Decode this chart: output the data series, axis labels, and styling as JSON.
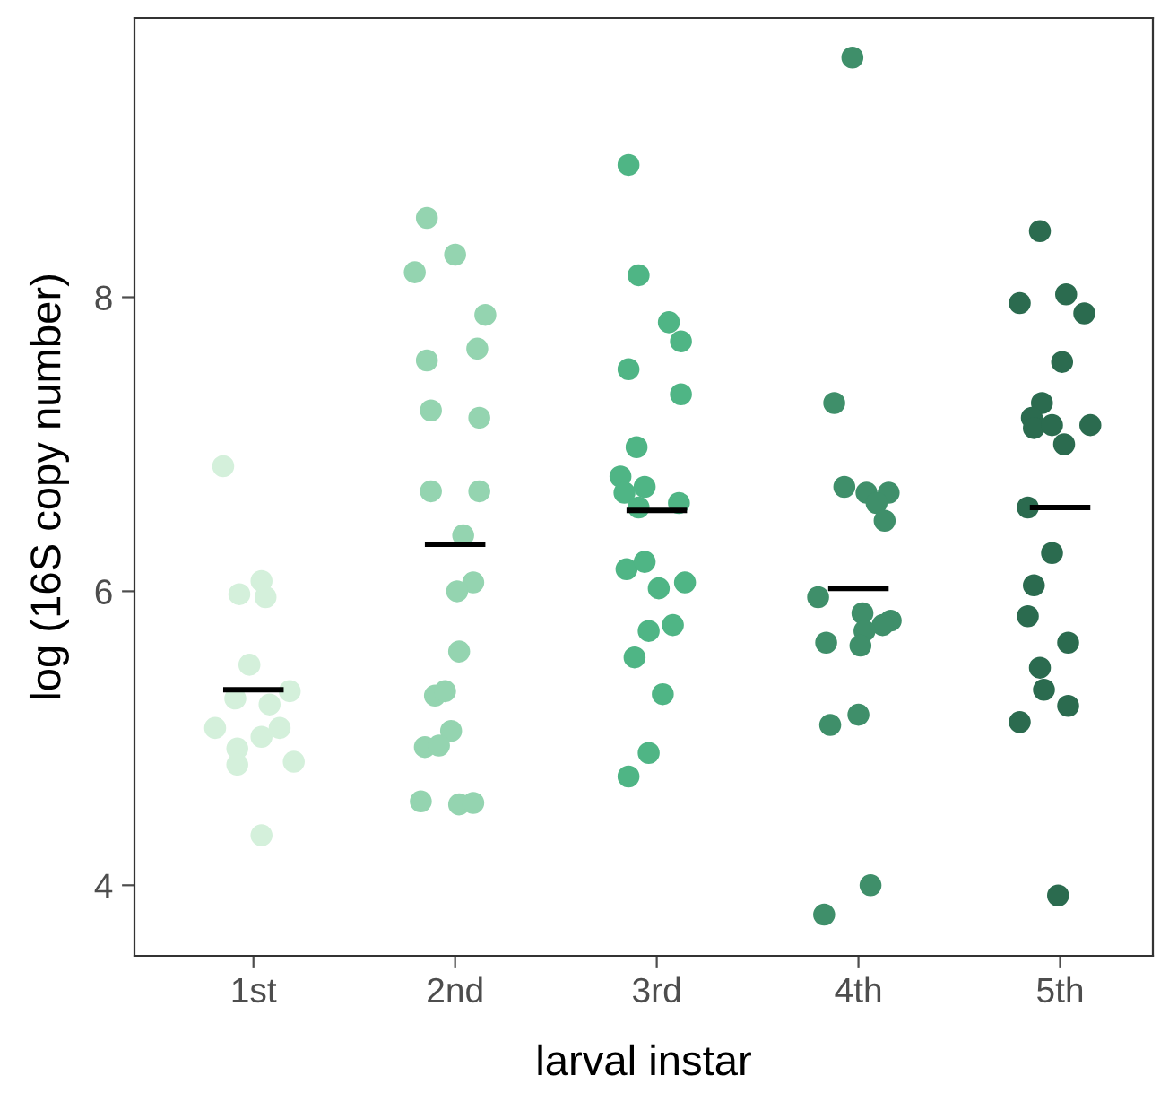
{
  "chart_data": {
    "type": "scatter",
    "xlabel": "larval instar",
    "ylabel": "log (16S copy number)",
    "xlim": [
      0.41,
      5.46
    ],
    "ylim": [
      3.52,
      9.9
    ],
    "xticks": [
      {
        "value": 1,
        "label": "1st"
      },
      {
        "value": 2,
        "label": "2nd"
      },
      {
        "value": 3,
        "label": "3rd"
      },
      {
        "value": 4,
        "label": "4th"
      },
      {
        "value": 5,
        "label": "5th"
      }
    ],
    "yticks": [
      4,
      6,
      8
    ],
    "grid": false,
    "marker": "circle",
    "series": [
      {
        "color": "#d4f0db",
        "x": [
          0.85,
          0.93,
          1.04,
          1.06,
          0.98,
          0.91,
          1.08,
          1.18,
          0.81,
          1.04,
          1.13,
          0.92,
          0.92,
          1.2,
          1.04
        ],
        "values": [
          6.85,
          5.98,
          6.07,
          5.96,
          5.5,
          5.27,
          5.23,
          5.32,
          5.07,
          5.01,
          5.07,
          4.93,
          4.82,
          4.84,
          4.34
        ]
      },
      {
        "color": "#94d4b0",
        "x": [
          1.86,
          2.0,
          1.8,
          2.15,
          2.11,
          1.86,
          1.88,
          2.12,
          1.88,
          2.12,
          2.04,
          2.09,
          2.01,
          2.02,
          1.9,
          1.95,
          1.98,
          1.85,
          1.92,
          1.83,
          2.02,
          2.09
        ],
        "values": [
          8.54,
          8.29,
          8.17,
          7.88,
          7.65,
          7.57,
          7.23,
          7.18,
          6.68,
          6.68,
          6.38,
          6.06,
          6.0,
          5.59,
          5.29,
          5.32,
          5.05,
          4.94,
          4.95,
          4.57,
          4.55,
          4.56
        ]
      },
      {
        "color": "#4fb585",
        "x": [
          2.86,
          2.91,
          3.06,
          3.12,
          2.86,
          3.12,
          2.9,
          2.82,
          2.84,
          2.94,
          2.91,
          3.11,
          2.85,
          2.94,
          3.01,
          3.14,
          2.96,
          3.08,
          2.89,
          3.03,
          2.96,
          2.86
        ],
        "values": [
          8.9,
          8.15,
          7.83,
          7.7,
          7.51,
          7.34,
          6.98,
          6.78,
          6.67,
          6.71,
          6.57,
          6.6,
          6.15,
          6.2,
          6.02,
          6.06,
          5.73,
          5.77,
          5.55,
          5.3,
          4.9,
          4.74
        ]
      },
      {
        "color": "#3f8f6a",
        "x": [
          3.97,
          3.88,
          3.93,
          4.04,
          4.15,
          4.09,
          4.13,
          3.8,
          4.02,
          4.16,
          4.12,
          4.03,
          3.84,
          4.01,
          4.0,
          3.86,
          4.06,
          3.83
        ],
        "values": [
          9.63,
          7.28,
          6.71,
          6.67,
          6.67,
          6.6,
          6.48,
          5.96,
          5.85,
          5.8,
          5.77,
          5.73,
          5.65,
          5.63,
          5.16,
          5.09,
          4.0,
          3.8
        ]
      },
      {
        "color": "#2b6b4f",
        "x": [
          4.9,
          4.8,
          5.03,
          5.12,
          5.01,
          4.91,
          4.86,
          4.87,
          4.96,
          5.15,
          5.02,
          4.84,
          4.96,
          4.87,
          4.84,
          5.04,
          4.9,
          4.92,
          5.04,
          4.8,
          4.99
        ],
        "values": [
          8.45,
          7.96,
          8.02,
          7.89,
          7.56,
          7.28,
          7.18,
          7.11,
          7.13,
          7.13,
          7.0,
          6.57,
          6.26,
          6.04,
          5.83,
          5.65,
          5.48,
          5.33,
          5.22,
          5.11,
          3.93
        ]
      },
      {
        "type": "line",
        "color": "#000000",
        "marker": "none",
        "x": [
          0.85,
          1.15
        ],
        "values": [
          5.33,
          5.33
        ]
      },
      {
        "type": "line",
        "color": "#000000",
        "marker": "none",
        "x": [
          1.85,
          2.15
        ],
        "values": [
          6.32,
          6.32
        ]
      },
      {
        "type": "line",
        "color": "#000000",
        "marker": "none",
        "x": [
          2.85,
          3.15
        ],
        "values": [
          6.55,
          6.55
        ]
      },
      {
        "type": "line",
        "color": "#000000",
        "marker": "none",
        "x": [
          3.85,
          4.15
        ],
        "values": [
          6.02,
          6.02
        ]
      },
      {
        "type": "line",
        "color": "#000000",
        "marker": "none",
        "x": [
          4.85,
          5.15
        ],
        "values": [
          6.57,
          6.57
        ]
      }
    ]
  }
}
